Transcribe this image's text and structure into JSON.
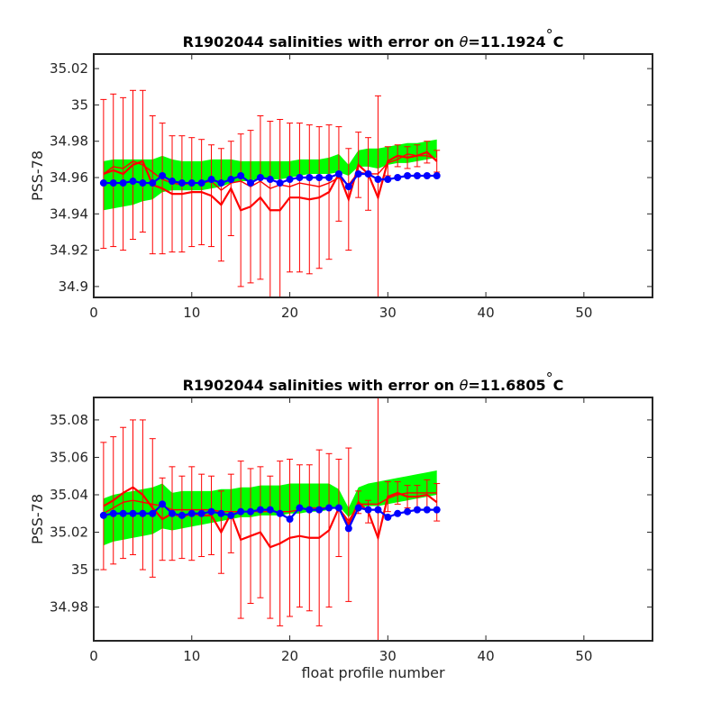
{
  "chart_data": [
    {
      "type": "line",
      "title_prefix": "R1902044 salinities with error on ",
      "title_symbol": "θ",
      "title_value": "=11.1924",
      "title_degree": "°",
      "title_unit": "C",
      "xlabel": "",
      "ylabel": "PSS-78",
      "xlim": [
        0,
        57
      ],
      "ylim": [
        34.894,
        35.028
      ],
      "xticks": [
        0,
        10,
        20,
        30,
        40,
        50
      ],
      "yticks": [
        34.9,
        34.92,
        34.94,
        34.96,
        34.98,
        35,
        35.02
      ],
      "ytick_labels": [
        "34.9",
        "34.92",
        "34.94",
        "34.96",
        "34.98",
        "35",
        "35.02"
      ],
      "grid": false,
      "colors": {
        "mapped": "#00ff00",
        "float": "#ff0000",
        "calibrated": "#0000ff"
      },
      "x": [
        1,
        2,
        3,
        4,
        5,
        6,
        7,
        8,
        9,
        10,
        11,
        12,
        13,
        14,
        15,
        16,
        17,
        18,
        19,
        20,
        21,
        22,
        23,
        24,
        25,
        26,
        27,
        28,
        29,
        30,
        31,
        32,
        33,
        34,
        35
      ],
      "series": [
        {
          "kind": "band",
          "lower": [
            34.942,
            34.943,
            34.944,
            34.945,
            34.947,
            34.948,
            34.952,
            34.953,
            34.953,
            34.953,
            34.953,
            34.954,
            34.955,
            34.957,
            34.958,
            34.958,
            34.96,
            34.959,
            34.959,
            34.96,
            34.961,
            34.962,
            34.962,
            34.962,
            34.963,
            34.961,
            34.966,
            34.966,
            34.965,
            34.967,
            34.968,
            34.968,
            34.969,
            34.97,
            34.971
          ],
          "upper": [
            34.969,
            34.97,
            34.97,
            34.97,
            34.97,
            34.97,
            34.972,
            34.97,
            34.969,
            34.969,
            34.969,
            34.97,
            34.97,
            34.97,
            34.969,
            34.969,
            34.969,
            34.969,
            34.969,
            34.969,
            34.97,
            34.97,
            34.97,
            34.971,
            34.973,
            34.967,
            34.975,
            34.976,
            34.976,
            34.977,
            34.978,
            34.979,
            34.979,
            34.98,
            34.981
          ]
        },
        {
          "kind": "line",
          "values": [
            34.962,
            34.966,
            34.965,
            34.969,
            34.967,
            34.963,
            34.959,
            34.957,
            34.956,
            34.957,
            34.957,
            34.958,
            34.953,
            34.957,
            34.958,
            34.955,
            34.958,
            34.954,
            34.956,
            34.955,
            34.957,
            34.956,
            34.955,
            34.957,
            34.96,
            34.956,
            34.963,
            34.962,
            34.962,
            34.968,
            34.97,
            34.973,
            34.972,
            34.972,
            34.97
          ]
        },
        {
          "kind": "errorbar",
          "values": [
            34.962,
            34.964,
            34.962,
            34.967,
            34.969,
            34.956,
            34.954,
            34.951,
            34.951,
            34.952,
            34.952,
            34.95,
            34.945,
            34.954,
            34.942,
            34.944,
            34.949,
            34.942,
            34.942,
            34.949,
            34.949,
            34.948,
            34.949,
            34.952,
            34.962,
            34.948,
            34.967,
            34.962,
            34.949,
            34.969,
            34.972,
            34.971,
            34.972,
            34.974,
            34.969
          ],
          "errors": [
            0.041,
            0.042,
            0.042,
            0.041,
            0.039,
            0.038,
            0.036,
            0.032,
            0.032,
            0.03,
            0.029,
            0.028,
            0.031,
            0.026,
            0.042,
            0.042,
            0.045,
            0.049,
            0.05,
            0.041,
            0.041,
            0.041,
            0.039,
            0.037,
            0.026,
            0.028,
            0.018,
            0.02,
            0.056,
            0.008,
            0.006,
            0.006,
            0.006,
            0.006,
            0.006
          ]
        },
        {
          "kind": "markers",
          "values": [
            34.957,
            34.957,
            34.957,
            34.958,
            34.957,
            34.957,
            34.961,
            34.958,
            34.957,
            34.957,
            34.957,
            34.959,
            34.957,
            34.959,
            34.961,
            34.957,
            34.96,
            34.959,
            34.957,
            34.959,
            34.96,
            34.96,
            34.96,
            34.96,
            34.962,
            34.955,
            34.962,
            34.962,
            34.959,
            34.959,
            34.96,
            34.961,
            34.961,
            34.961,
            34.961
          ]
        }
      ]
    },
    {
      "type": "line",
      "title_prefix": "R1902044 salinities with error on ",
      "title_symbol": "θ",
      "title_value": "=11.6805",
      "title_degree": "°",
      "title_unit": "C",
      "xlabel": "float profile number",
      "ylabel": "PSS-78",
      "xlim": [
        0,
        57
      ],
      "ylim": [
        34.962,
        35.092
      ],
      "xticks": [
        0,
        10,
        20,
        30,
        40,
        50
      ],
      "yticks": [
        34.98,
        35,
        35.02,
        35.04,
        35.06,
        35.08
      ],
      "ytick_labels": [
        "34.98",
        "35",
        "35.02",
        "35.04",
        "35.06",
        "35.08"
      ],
      "grid": false,
      "colors": {
        "mapped": "#00ff00",
        "float": "#ff0000",
        "calibrated": "#0000ff"
      },
      "x": [
        1,
        2,
        3,
        4,
        5,
        6,
        7,
        8,
        9,
        10,
        11,
        12,
        13,
        14,
        15,
        16,
        17,
        18,
        19,
        20,
        21,
        22,
        23,
        24,
        25,
        26,
        27,
        28,
        29,
        30,
        31,
        32,
        33,
        34,
        35
      ],
      "series": [
        {
          "kind": "band",
          "lower": [
            35.013,
            35.015,
            35.016,
            35.017,
            35.018,
            35.019,
            35.022,
            35.021,
            35.022,
            35.023,
            35.024,
            35.025,
            35.026,
            35.027,
            35.028,
            35.028,
            35.029,
            35.029,
            35.029,
            35.03,
            35.03,
            35.031,
            35.031,
            35.032,
            35.034,
            35.028,
            35.033,
            35.034,
            35.034,
            35.035,
            35.036,
            35.037,
            35.038,
            35.039,
            35.04
          ],
          "upper": [
            35.038,
            35.04,
            35.041,
            35.042,
            35.043,
            35.044,
            35.046,
            35.041,
            35.042,
            35.042,
            35.042,
            35.042,
            35.043,
            35.043,
            35.044,
            35.044,
            35.045,
            35.045,
            35.045,
            35.046,
            35.046,
            35.046,
            35.046,
            35.046,
            35.043,
            35.033,
            35.044,
            35.046,
            35.047,
            35.048,
            35.049,
            35.05,
            35.051,
            35.052,
            35.053
          ]
        },
        {
          "kind": "line",
          "values": [
            35.03,
            35.033,
            35.036,
            35.037,
            35.036,
            35.035,
            35.034,
            35.032,
            35.032,
            35.032,
            35.032,
            35.032,
            35.031,
            35.031,
            35.031,
            35.031,
            35.031,
            35.031,
            35.031,
            35.031,
            35.032,
            35.033,
            35.033,
            35.033,
            35.033,
            35.026,
            35.035,
            35.035,
            35.035,
            35.038,
            35.04,
            35.041,
            35.041,
            35.041,
            35.041
          ]
        },
        {
          "kind": "errorbar",
          "values": [
            35.034,
            35.037,
            35.041,
            35.044,
            35.04,
            35.033,
            35.027,
            35.03,
            35.028,
            35.03,
            35.029,
            35.029,
            35.02,
            35.03,
            35.016,
            35.018,
            35.02,
            35.012,
            35.014,
            35.017,
            35.018,
            35.017,
            35.017,
            35.021,
            35.033,
            35.024,
            35.036,
            35.031,
            35.017,
            35.039,
            35.041,
            35.039,
            35.039,
            35.04,
            35.036
          ],
          "errors": [
            0.034,
            0.034,
            0.035,
            0.036,
            0.04,
            0.037,
            0.022,
            0.025,
            0.022,
            0.025,
            0.022,
            0.021,
            0.022,
            0.021,
            0.042,
            0.036,
            0.035,
            0.038,
            0.044,
            0.042,
            0.038,
            0.039,
            0.047,
            0.041,
            0.026,
            0.041,
            0.006,
            0.006,
            0.1,
            0.008,
            0.006,
            0.006,
            0.006,
            0.008,
            0.01
          ]
        },
        {
          "kind": "markers",
          "values": [
            35.029,
            35.03,
            35.03,
            35.03,
            35.03,
            35.03,
            35.035,
            35.03,
            35.029,
            35.03,
            35.03,
            35.031,
            35.03,
            35.029,
            35.031,
            35.031,
            35.032,
            35.032,
            35.03,
            35.027,
            35.033,
            35.032,
            35.032,
            35.033,
            35.033,
            35.022,
            35.033,
            35.032,
            35.032,
            35.028,
            35.03,
            35.031,
            35.032,
            35.032,
            35.032
          ]
        }
      ]
    }
  ]
}
